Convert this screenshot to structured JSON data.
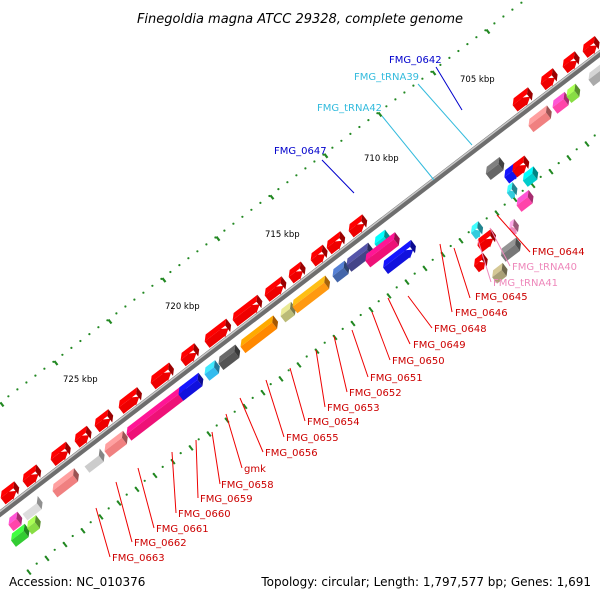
{
  "title": "Finegoldia magna ATCC 29328, complete genome",
  "footer": {
    "accession": "Accession: NC_010376",
    "topology": "Topology: circular; Length: 1,797,577 bp; Genes: 1,691"
  },
  "scale_ticks": [
    "705 kbp",
    "710 kbp",
    "715 kbp",
    "720 kbp",
    "725 kbp"
  ],
  "labels_top": [
    {
      "text": "FMG_0642",
      "color": "#0000cc"
    },
    {
      "text": "FMG_tRNA39",
      "color": "#33bbdd"
    },
    {
      "text": "FMG_tRNA42",
      "color": "#33bbdd"
    },
    {
      "text": "FMG_0647",
      "color": "#0000cc"
    }
  ],
  "labels_right": [
    {
      "text": "FMG_0644",
      "color": "#cc0000"
    },
    {
      "text": "FMG_tRNA40",
      "color": "#ee88bb"
    },
    {
      "text": "FMG_tRNA41",
      "color": "#ee88bb"
    },
    {
      "text": "FMG_0645",
      "color": "#cc0000"
    },
    {
      "text": "FMG_0646",
      "color": "#cc0000"
    },
    {
      "text": "FMG_0648",
      "color": "#cc0000"
    },
    {
      "text": "FMG_0649",
      "color": "#cc0000"
    },
    {
      "text": "FMG_0650",
      "color": "#cc0000"
    },
    {
      "text": "FMG_0651",
      "color": "#cc0000"
    },
    {
      "text": "FMG_0652",
      "color": "#cc0000"
    },
    {
      "text": "FMG_0653",
      "color": "#cc0000"
    },
    {
      "text": "FMG_0654",
      "color": "#cc0000"
    },
    {
      "text": "FMG_0655",
      "color": "#cc0000"
    },
    {
      "text": "FMG_0656",
      "color": "#cc0000"
    },
    {
      "text": "gmk",
      "color": "#cc0000"
    },
    {
      "text": "FMG_0658",
      "color": "#cc0000"
    },
    {
      "text": "FMG_0659",
      "color": "#cc0000"
    },
    {
      "text": "FMG_0660",
      "color": "#cc0000"
    },
    {
      "text": "FMG_0661",
      "color": "#cc0000"
    },
    {
      "text": "FMG_0662",
      "color": "#cc0000"
    },
    {
      "text": "FMG_0663",
      "color": "#cc0000"
    }
  ]
}
